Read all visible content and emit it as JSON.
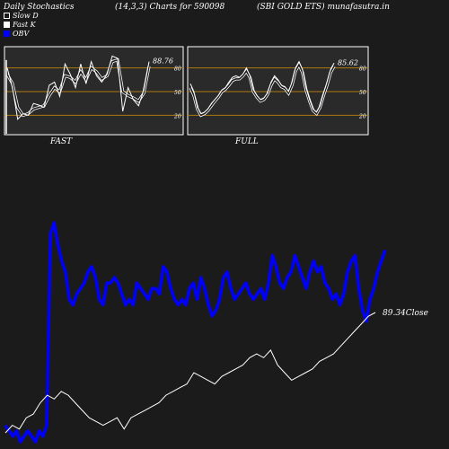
{
  "header": {
    "left": "Daily Stochastics",
    "center": "(14,3,3) Charts for 590098",
    "right": "(SBI GOLD ETS) munafasutra.in"
  },
  "legend": [
    {
      "label": "Slow  D",
      "color": "#1b1b1b"
    },
    {
      "label": "Fast K",
      "color": "#ffffff"
    },
    {
      "label": "OBV",
      "color": "#0000ff"
    }
  ],
  "colors": {
    "background": "#1b1b1b",
    "panel": "#2a2a2a",
    "level_line": "#b07a10",
    "obv": "#0000ff",
    "close": "#ffffff"
  },
  "chart_data": [
    {
      "type": "line",
      "title": "FAST",
      "ylim": [
        0,
        100
      ],
      "yticks": [
        20,
        50,
        80
      ],
      "levels": [
        20,
        50,
        80
      ],
      "last_value_label": "88.76",
      "series": [
        {
          "name": "Fast K",
          "values": [
            80,
            55,
            15,
            22,
            20,
            35,
            33,
            30,
            58,
            62,
            44,
            85,
            72,
            55,
            85,
            60,
            88,
            70,
            62,
            72,
            95,
            92,
            25,
            55,
            40,
            32,
            52,
            88
          ]
        },
        {
          "name": "Slow  D",
          "values": [
            72,
            60,
            30,
            20,
            22,
            28,
            30,
            32,
            45,
            55,
            50,
            70,
            68,
            62,
            75,
            65,
            80,
            75,
            66,
            70,
            88,
            90,
            50,
            45,
            42,
            38,
            48,
            82
          ]
        }
      ]
    },
    {
      "type": "line",
      "title": "FULL",
      "ylim": [
        0,
        100
      ],
      "yticks": [
        20,
        50,
        80
      ],
      "levels": [
        20,
        50,
        80
      ],
      "last_value_label": "85.62",
      "series": [
        {
          "name": "Fast K",
          "values": [
            60,
            50,
            30,
            22,
            24,
            28,
            35,
            40,
            45,
            52,
            55,
            62,
            68,
            70,
            68,
            72,
            80,
            70,
            52,
            45,
            40,
            42,
            48,
            62,
            70,
            65,
            58,
            56,
            50,
            62,
            80,
            88,
            78,
            55,
            40,
            28,
            24,
            32,
            48,
            62,
            78,
            86
          ]
        },
        {
          "name": "Slow  D",
          "values": [
            55,
            45,
            28,
            20,
            22,
            26,
            32,
            38,
            43,
            50,
            53,
            58,
            64,
            66,
            66,
            70,
            76,
            68,
            50,
            43,
            38,
            40,
            46,
            58,
            66,
            62,
            56,
            54,
            48,
            58,
            76,
            84,
            74,
            52,
            38,
            26,
            22,
            30,
            45,
            58,
            74,
            82
          ]
        }
      ]
    },
    {
      "type": "line",
      "title": "",
      "series": [
        {
          "name": "OBV",
          "values": [
            5,
            4,
            3,
            4,
            2,
            3,
            4,
            3,
            2,
            4,
            3,
            5,
            40,
            42,
            38,
            35,
            33,
            28,
            27,
            29,
            30,
            31,
            33,
            34,
            32,
            28,
            27,
            31,
            31,
            32,
            31,
            29,
            27,
            28,
            27,
            31,
            30,
            29,
            28,
            30,
            30,
            29,
            34,
            33,
            30,
            28,
            27,
            28,
            27,
            30,
            31,
            28,
            32,
            30,
            27,
            25,
            26,
            28,
            32,
            33,
            30,
            28,
            29,
            30,
            31,
            29,
            28,
            29,
            30,
            28,
            31,
            36,
            34,
            31,
            30,
            32,
            33,
            36,
            34,
            32,
            30,
            33,
            35,
            33,
            34,
            31,
            30,
            28,
            29,
            27,
            29,
            33,
            35,
            36,
            30,
            26,
            24,
            28,
            30,
            33,
            35,
            37
          ]
        },
        {
          "name": "Close",
          "values": [
            89.02,
            89.04,
            89.03,
            89.06,
            89.07,
            89.1,
            89.12,
            89.11,
            89.13,
            89.12,
            89.1,
            89.08,
            89.06,
            89.05,
            89.04,
            89.05,
            89.06,
            89.03,
            89.06,
            89.07,
            89.08,
            89.09,
            89.1,
            89.12,
            89.13,
            89.14,
            89.15,
            89.18,
            89.17,
            89.16,
            89.15,
            89.17,
            89.18,
            89.19,
            89.2,
            89.22,
            89.23,
            89.22,
            89.24,
            89.2,
            89.18,
            89.16,
            89.17,
            89.18,
            89.19,
            89.21,
            89.22,
            89.23,
            89.25,
            89.27,
            89.29,
            89.31,
            89.33,
            89.34
          ]
        }
      ],
      "last_value_label": "89.34Close"
    }
  ]
}
